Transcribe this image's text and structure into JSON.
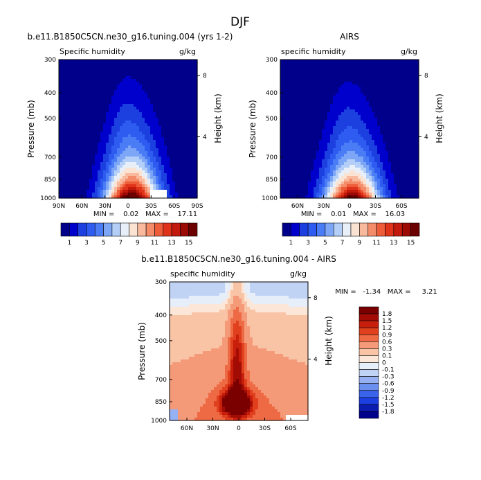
{
  "page_title": "DJF",
  "colors": {
    "abs_scale": [
      "#00008b",
      "#0000cd",
      "#1c3fe0",
      "#2e5cf0",
      "#4a7cf5",
      "#7ea6f7",
      "#b3cff7",
      "#e8eff8",
      "#fbe3d4",
      "#f8b99c",
      "#f48c6a",
      "#ee5d3a",
      "#e0341a",
      "#c21a0c",
      "#9b0a04",
      "#6b0000"
    ],
    "diff_scale": [
      "#00008b",
      "#0a1db0",
      "#1c3fe0",
      "#3a63ec",
      "#6b8fef",
      "#96b1f2",
      "#c1d3f5",
      "#e6eef9",
      "#fbe6d8",
      "#f9c3a5",
      "#f59a78",
      "#ee6a44",
      "#e0401e",
      "#c81e0c",
      "#a20c05",
      "#7a0000"
    ]
  },
  "chart_data": [
    {
      "type": "heatmap",
      "title": "b.e11.B1850C5CN.ne30_g16.tuning.004 (yrs 1-2)",
      "left_label": "Specific humidity",
      "right_label": "g/kg",
      "ylabel": "Pressure (mb)",
      "ylabel_right": "Height (km)",
      "x_ticks": [
        "90N",
        "60N",
        "30N",
        "0",
        "30S",
        "60S",
        "90S"
      ],
      "x_tick_values": [
        90,
        60,
        30,
        0,
        -30,
        -60,
        -90
      ],
      "xlim": [
        90,
        -90
      ],
      "y_ticks": [
        "300",
        "400",
        "500",
        "700",
        "850",
        "1000"
      ],
      "y_tick_values": [
        300,
        400,
        500,
        700,
        850,
        1000
      ],
      "ylim": [
        300,
        1000
      ],
      "y_scale": "log",
      "height_ticks": [
        "8",
        "4"
      ],
      "height_tick_values": [
        8,
        4
      ],
      "stats": "MIN =    0.02   MAX =    17.11",
      "min": 0.02,
      "max": 17.11,
      "field": {
        "peak": 17.1,
        "peak_lat": -5,
        "width_lat": 35,
        "base": 0.02,
        "scale_height": 2.6,
        "missing": {
          "lat_from": -30,
          "lat_to": -50,
          "p_from": 930,
          "p_to": 1000
        }
      },
      "colorbar": {
        "levels": [
          1,
          2,
          3,
          4,
          5,
          6,
          7,
          8,
          9,
          10,
          11,
          12,
          13,
          14,
          15
        ],
        "labels": [
          "1",
          "3",
          "5",
          "7",
          "9",
          "11",
          "13",
          "15"
        ]
      }
    },
    {
      "type": "heatmap",
      "title": "AIRS",
      "left_label": "specific humidity",
      "right_label": "g/kg",
      "ylabel": "Pressure (mb)",
      "ylabel_right": "Height (km)",
      "x_ticks": [
        "60N",
        "30N",
        "0",
        "30S",
        "60S"
      ],
      "x_tick_values": [
        60,
        30,
        0,
        -30,
        -60
      ],
      "xlim": [
        80,
        -80
      ],
      "y_ticks": [
        "300",
        "400",
        "500",
        "700",
        "850",
        "1000"
      ],
      "y_tick_values": [
        300,
        400,
        500,
        700,
        850,
        1000
      ],
      "ylim": [
        300,
        1000
      ],
      "y_scale": "log",
      "height_ticks": [
        "8",
        "4"
      ],
      "height_tick_values": [
        8,
        4
      ],
      "stats": "MIN =    0.01   MAX =    16.03",
      "min": 0.01,
      "max": 16.03,
      "field": {
        "peak": 16.0,
        "peak_lat": -3,
        "width_lat": 32,
        "base": 0.01,
        "scale_height": 2.5
      },
      "colorbar": {
        "levels": [
          1,
          2,
          3,
          4,
          5,
          6,
          7,
          8,
          9,
          10,
          11,
          12,
          13,
          14,
          15
        ],
        "labels": [
          "1",
          "3",
          "5",
          "7",
          "9",
          "11",
          "13",
          "15"
        ]
      }
    },
    {
      "type": "heatmap",
      "title": "b.e11.B1850C5CN.ne30_g16.tuning.004 - AIRS",
      "left_label": "specific humidity",
      "right_label": "g/kg",
      "ylabel": "Pressure (mb)",
      "ylabel_right": "Height (km)",
      "x_ticks": [
        "60N",
        "30N",
        "0",
        "30S",
        "60S"
      ],
      "x_tick_values": [
        60,
        30,
        0,
        -30,
        -60
      ],
      "xlim": [
        80,
        -80
      ],
      "y_ticks": [
        "300",
        "400",
        "500",
        "700",
        "850",
        "1000"
      ],
      "y_tick_values": [
        300,
        400,
        500,
        700,
        850,
        1000
      ],
      "ylim": [
        300,
        1000
      ],
      "y_scale": "log",
      "height_ticks": [
        "8",
        "4"
      ],
      "height_tick_values": [
        8,
        4
      ],
      "stats": "MIN =   -1.34   MAX =     3.21",
      "min": -1.34,
      "max": 3.21,
      "colorbar": {
        "levels": [
          -1.8,
          -1.5,
          -1.2,
          -0.9,
          -0.6,
          -0.3,
          -0.1,
          0,
          0.1,
          0.3,
          0.6,
          0.9,
          1.2,
          1.5,
          1.8
        ],
        "labels": [
          "1.8",
          "1.5",
          "1.2",
          "0.9",
          "0.6",
          "0.3",
          "0.1",
          "0",
          "-0.1",
          "-0.3",
          "-0.6",
          "-0.9",
          "-1.2",
          "-1.5",
          "-1.8"
        ]
      }
    }
  ]
}
